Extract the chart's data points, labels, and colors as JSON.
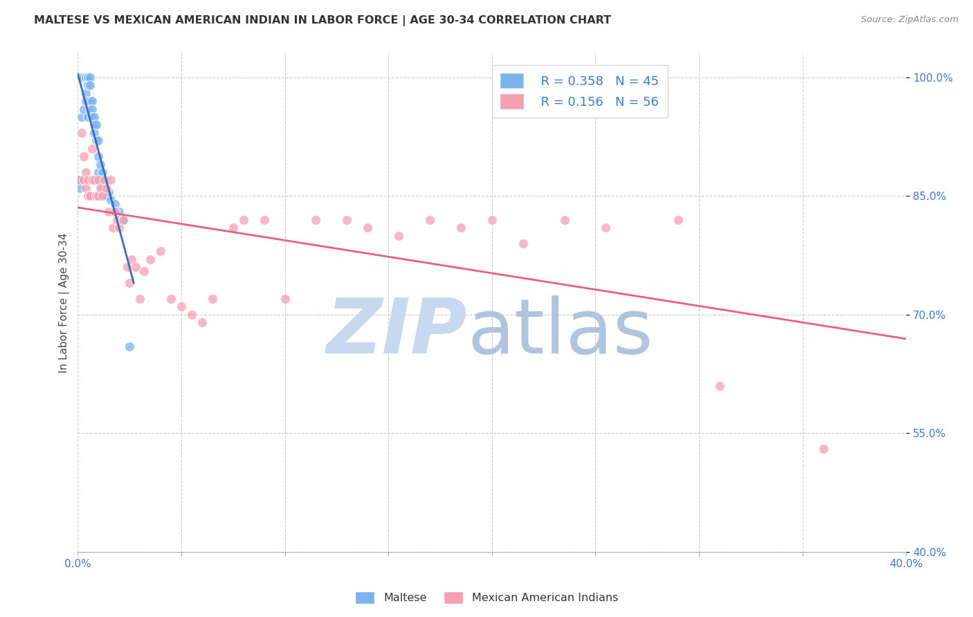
{
  "title": "MALTESE VS MEXICAN AMERICAN INDIAN IN LABOR FORCE | AGE 30-34 CORRELATION CHART",
  "source": "Source: ZipAtlas.com",
  "ylabel": "In Labor Force | Age 30-34",
  "xlim": [
    0.0,
    0.4
  ],
  "ylim": [
    0.4,
    1.03
  ],
  "yticks": [
    0.4,
    0.55,
    0.7,
    0.85,
    1.0
  ],
  "yticklabels": [
    "40.0%",
    "55.0%",
    "70.0%",
    "85.0%",
    "100.0%"
  ],
  "xtick_left_label": "0.0%",
  "xtick_right_label": "40.0%",
  "grid_color": "#cccccc",
  "legend_R_blue": "R = 0.358",
  "legend_N_blue": "N = 45",
  "legend_R_pink": "R = 0.156",
  "legend_N_pink": "N = 56",
  "blue_color": "#7ab3ef",
  "pink_color": "#f4a0b0",
  "trendline_blue_color": "#3a6bbf",
  "trendline_pink_color": "#e8607a",
  "label_color": "#4477cc",
  "maltese_x": [
    0.001,
    0.001,
    0.001,
    0.002,
    0.002,
    0.002,
    0.002,
    0.003,
    0.003,
    0.004,
    0.004,
    0.004,
    0.004,
    0.005,
    0.005,
    0.005,
    0.005,
    0.005,
    0.006,
    0.006,
    0.006,
    0.006,
    0.007,
    0.007,
    0.007,
    0.008,
    0.008,
    0.008,
    0.009,
    0.009,
    0.01,
    0.01,
    0.01,
    0.011,
    0.011,
    0.012,
    0.012,
    0.013,
    0.014,
    0.015,
    0.016,
    0.018,
    0.02,
    0.022,
    0.025
  ],
  "maltese_y": [
    0.87,
    0.87,
    0.86,
    1.0,
    1.0,
    1.0,
    0.95,
    1.0,
    0.96,
    1.0,
    1.0,
    0.98,
    0.97,
    1.0,
    1.0,
    1.0,
    0.99,
    0.95,
    1.0,
    0.99,
    0.97,
    0.96,
    0.97,
    0.96,
    0.95,
    0.95,
    0.94,
    0.93,
    0.94,
    0.92,
    0.92,
    0.9,
    0.88,
    0.89,
    0.87,
    0.88,
    0.86,
    0.86,
    0.85,
    0.855,
    0.845,
    0.84,
    0.83,
    0.82,
    0.66
  ],
  "mexican_x": [
    0.001,
    0.002,
    0.003,
    0.003,
    0.004,
    0.004,
    0.005,
    0.005,
    0.006,
    0.007,
    0.007,
    0.008,
    0.009,
    0.01,
    0.01,
    0.011,
    0.012,
    0.013,
    0.014,
    0.015,
    0.016,
    0.017,
    0.018,
    0.019,
    0.02,
    0.022,
    0.024,
    0.025,
    0.026,
    0.028,
    0.03,
    0.032,
    0.035,
    0.04,
    0.045,
    0.05,
    0.055,
    0.06,
    0.065,
    0.075,
    0.08,
    0.09,
    0.1,
    0.115,
    0.13,
    0.14,
    0.155,
    0.17,
    0.185,
    0.2,
    0.215,
    0.235,
    0.255,
    0.29,
    0.31,
    0.36
  ],
  "mexican_y": [
    0.87,
    0.93,
    0.9,
    0.87,
    0.88,
    0.86,
    0.87,
    0.85,
    0.85,
    0.91,
    0.87,
    0.87,
    0.85,
    0.87,
    0.85,
    0.86,
    0.85,
    0.87,
    0.86,
    0.83,
    0.87,
    0.81,
    0.83,
    0.82,
    0.81,
    0.82,
    0.76,
    0.74,
    0.77,
    0.76,
    0.72,
    0.755,
    0.77,
    0.78,
    0.72,
    0.71,
    0.7,
    0.69,
    0.72,
    0.81,
    0.82,
    0.82,
    0.72,
    0.82,
    0.82,
    0.81,
    0.8,
    0.82,
    0.81,
    0.82,
    0.79,
    0.82,
    0.81,
    0.82,
    0.61,
    0.53
  ],
  "watermark_zip_color": "#c8d8ee",
  "watermark_atlas_color": "#b0c4de"
}
